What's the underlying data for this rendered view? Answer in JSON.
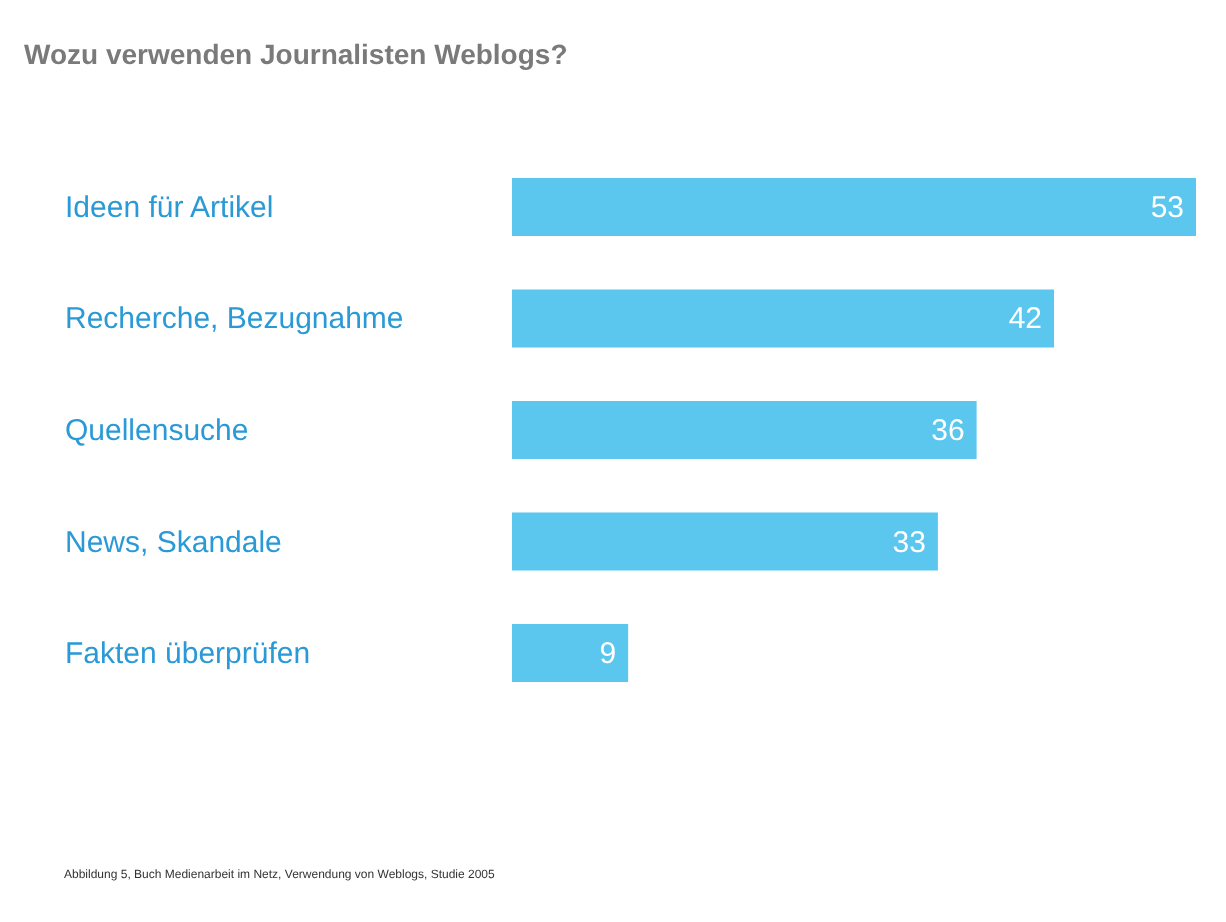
{
  "chart_data": {
    "type": "bar",
    "orientation": "horizontal",
    "title": "Wozu verwenden Journalisten Weblogs?",
    "categories": [
      "Ideen für Artikel",
      "Recherche, Bezugnahme",
      "Quellensuche",
      "News, Skandale",
      "Fakten überprüfen"
    ],
    "values": [
      53,
      42,
      36,
      33,
      9
    ],
    "color": "#5bc6ee",
    "data_labels": true,
    "annotations": [
      "Abbildung 5, Buch Medienarbeit im Netz, Verwendung von Weblogs, Studie 2005"
    ]
  }
}
